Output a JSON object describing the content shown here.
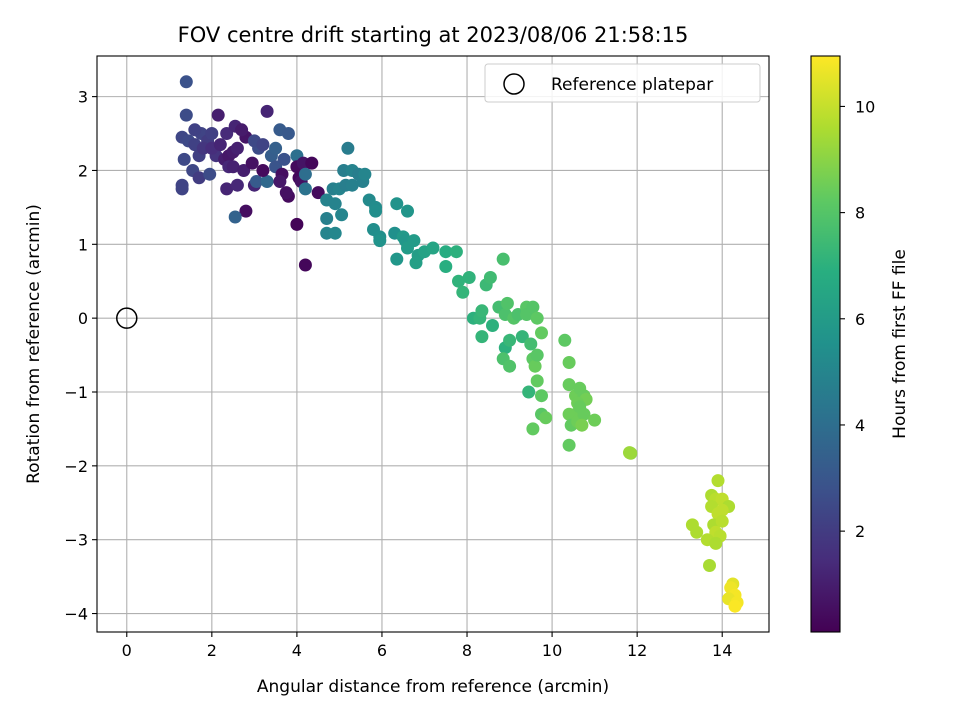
{
  "chart_data": {
    "type": "scatter",
    "title": "FOV centre drift starting at 2023/08/06 21:58:15",
    "xlabel": "Angular distance from reference (arcmin)",
    "ylabel": "Rotation from reference (arcmin)",
    "xlim": [
      -0.7,
      15.1
    ],
    "ylim": [
      -4.25,
      3.55
    ],
    "xticks": [
      0,
      2,
      4,
      6,
      8,
      10,
      12,
      14
    ],
    "yticks": [
      -4,
      -3,
      -2,
      -1,
      0,
      1,
      2,
      3
    ],
    "xtick_labels": [
      "0",
      "2",
      "4",
      "6",
      "8",
      "10",
      "12",
      "14"
    ],
    "ytick_labels": [
      "−4",
      "−3",
      "−2",
      "−1",
      "0",
      "1",
      "2",
      "3"
    ],
    "grid": true,
    "legend": {
      "location": "upper right",
      "entries": [
        "Reference platepar"
      ]
    },
    "reference_point": {
      "x": 0,
      "y": 0,
      "label": "Reference platepar"
    },
    "colorbar": {
      "label": "Hours from first FF file",
      "colormap": "viridis",
      "range": [
        0.1,
        10.95
      ],
      "ticks": [
        2,
        4,
        6,
        8,
        10
      ],
      "tick_labels": [
        "2",
        "4",
        "6",
        "8",
        "10"
      ]
    },
    "points": [
      [
        1.4,
        3.2,
        2.8
      ],
      [
        1.4,
        2.75,
        2.6
      ],
      [
        1.3,
        2.45,
        2.4
      ],
      [
        1.45,
        2.4,
        2.5
      ],
      [
        1.6,
        2.35,
        2.2
      ],
      [
        1.75,
        2.5,
        2.3
      ],
      [
        1.9,
        2.4,
        2.0
      ],
      [
        2.0,
        2.5,
        2.1
      ],
      [
        1.35,
        2.15,
        2.5
      ],
      [
        1.7,
        2.2,
        2.1
      ],
      [
        1.55,
        2.0,
        2.4
      ],
      [
        1.7,
        1.9,
        2.0
      ],
      [
        1.95,
        1.95,
        2.6
      ],
      [
        1.8,
        2.3,
        1.8
      ],
      [
        2.1,
        2.2,
        1.7
      ],
      [
        1.3,
        1.8,
        2.3
      ],
      [
        1.3,
        1.75,
        2.3
      ],
      [
        1.6,
        2.55,
        2.2
      ],
      [
        2.0,
        2.3,
        1.5
      ],
      [
        2.2,
        2.35,
        1.2
      ],
      [
        2.3,
        2.15,
        1.0
      ],
      [
        2.4,
        2.2,
        0.8
      ],
      [
        2.5,
        2.25,
        0.9
      ],
      [
        2.15,
        2.75,
        1.0
      ],
      [
        2.35,
        2.5,
        1.4
      ],
      [
        2.55,
        2.6,
        1.2
      ],
      [
        2.6,
        2.3,
        1.1
      ],
      [
        2.8,
        2.45,
        0.7
      ],
      [
        2.7,
        2.55,
        0.9
      ],
      [
        2.4,
        2.05,
        1.3
      ],
      [
        2.5,
        2.05,
        1.1
      ],
      [
        2.35,
        1.75,
        1.2
      ],
      [
        2.6,
        1.8,
        1.3
      ],
      [
        2.75,
        2.0,
        1.0
      ],
      [
        2.8,
        1.45,
        0.5
      ],
      [
        2.55,
        1.37,
        3.5
      ],
      [
        2.95,
        2.1,
        0.6
      ],
      [
        3.0,
        1.8,
        1.2
      ],
      [
        3.05,
        1.85,
        3.2
      ],
      [
        3.1,
        2.3,
        2.6
      ],
      [
        3.0,
        2.4,
        2.5
      ],
      [
        3.2,
        2.35,
        2.3
      ],
      [
        3.3,
        2.8,
        1.2
      ],
      [
        3.4,
        2.2,
        3.3
      ],
      [
        3.3,
        1.85,
        3.8
      ],
      [
        3.2,
        2.0,
        0.4
      ],
      [
        3.5,
        2.3,
        3.4
      ],
      [
        3.6,
        2.55,
        3.2
      ],
      [
        3.5,
        2.05,
        2.9
      ],
      [
        3.7,
        2.15,
        2.8
      ],
      [
        3.8,
        2.5,
        3.1
      ],
      [
        3.65,
        1.95,
        0.5
      ],
      [
        3.6,
        1.85,
        0.8
      ],
      [
        3.8,
        1.65,
        0.4
      ],
      [
        3.75,
        1.7,
        0.6
      ],
      [
        4.0,
        2.2,
        4.1
      ],
      [
        4.0,
        2.05,
        0.4
      ],
      [
        4.05,
        1.9,
        0.3
      ],
      [
        4.1,
        1.85,
        0.6
      ],
      [
        4.15,
        2.1,
        0.7
      ],
      [
        4.2,
        1.75,
        4.2
      ],
      [
        4.2,
        1.95,
        4.0
      ],
      [
        4.35,
        2.1,
        0.3
      ],
      [
        4.5,
        1.7,
        0.4
      ],
      [
        4.0,
        1.27,
        0.2
      ],
      [
        4.2,
        0.72,
        0.3
      ],
      [
        4.7,
        1.6,
        4.9
      ],
      [
        4.85,
        1.75,
        4.8
      ],
      [
        4.9,
        1.55,
        4.9
      ],
      [
        4.7,
        1.35,
        4.8
      ],
      [
        4.7,
        1.15,
        5.0
      ],
      [
        4.9,
        1.15,
        5.1
      ],
      [
        5.05,
        1.4,
        5.0
      ],
      [
        5.0,
        1.75,
        4.9
      ],
      [
        5.15,
        1.8,
        4.7
      ],
      [
        5.3,
        1.8,
        4.8
      ],
      [
        5.1,
        2.0,
        4.7
      ],
      [
        5.3,
        2.0,
        4.9
      ],
      [
        5.2,
        2.3,
        4.6
      ],
      [
        5.45,
        1.95,
        4.7
      ],
      [
        5.55,
        1.85,
        4.8
      ],
      [
        5.6,
        1.95,
        5.0
      ],
      [
        5.7,
        1.6,
        5.2
      ],
      [
        5.85,
        1.5,
        5.3
      ],
      [
        5.85,
        1.45,
        5.4
      ],
      [
        5.8,
        1.2,
        5.4
      ],
      [
        5.95,
        1.1,
        5.5
      ],
      [
        5.95,
        1.05,
        5.6
      ],
      [
        6.3,
        1.15,
        5.5
      ],
      [
        6.35,
        1.55,
        5.6
      ],
      [
        6.6,
        1.45,
        5.7
      ],
      [
        6.35,
        0.8,
        5.8
      ],
      [
        6.5,
        1.1,
        5.9
      ],
      [
        6.55,
        1.05,
        5.8
      ],
      [
        6.6,
        0.95,
        6.0
      ],
      [
        6.75,
        1.05,
        6.0
      ],
      [
        6.85,
        0.85,
        6.1
      ],
      [
        6.8,
        0.75,
        6.2
      ],
      [
        7.0,
        0.9,
        6.3
      ],
      [
        7.2,
        0.95,
        6.4
      ],
      [
        7.5,
        0.9,
        6.8
      ],
      [
        7.5,
        0.7,
        6.9
      ],
      [
        7.75,
        0.9,
        7.0
      ],
      [
        7.8,
        0.5,
        7.1
      ],
      [
        7.9,
        0.35,
        7.2
      ],
      [
        8.05,
        0.55,
        7.1
      ],
      [
        8.15,
        0.0,
        7.0
      ],
      [
        8.3,
        0.0,
        7.2
      ],
      [
        8.35,
        0.1,
        7.3
      ],
      [
        8.35,
        -0.25,
        7.2
      ],
      [
        8.45,
        0.45,
        7.4
      ],
      [
        8.55,
        0.55,
        7.5
      ],
      [
        8.6,
        -0.1,
        7.0
      ],
      [
        8.75,
        0.15,
        7.6
      ],
      [
        8.85,
        0.8,
        7.7
      ],
      [
        8.9,
        0.05,
        7.8
      ],
      [
        8.95,
        0.2,
        7.9
      ],
      [
        8.9,
        -0.4,
        7.0
      ],
      [
        8.85,
        -0.55,
        7.8
      ],
      [
        9.0,
        -0.65,
        7.9
      ],
      [
        9.1,
        0.0,
        8.0
      ],
      [
        9.2,
        0.05,
        7.8
      ],
      [
        9.0,
        -0.3,
        7.3
      ],
      [
        9.3,
        -0.25,
        7.2
      ],
      [
        9.4,
        0.15,
        8.1
      ],
      [
        9.4,
        0.05,
        8.0
      ],
      [
        9.55,
        0.15,
        8.0
      ],
      [
        9.65,
        0.0,
        8.2
      ],
      [
        9.5,
        -0.35,
        7.6
      ],
      [
        9.75,
        -0.2,
        8.3
      ],
      [
        9.55,
        -0.55,
        8.2
      ],
      [
        9.6,
        -0.65,
        8.4
      ],
      [
        9.65,
        -0.5,
        8.1
      ],
      [
        9.45,
        -1.0,
        7.2
      ],
      [
        9.65,
        -0.85,
        8.3
      ],
      [
        9.75,
        -1.05,
        8.2
      ],
      [
        9.75,
        -1.3,
        8.1
      ],
      [
        9.55,
        -1.5,
        8.3
      ],
      [
        9.85,
        -1.35,
        8.4
      ],
      [
        10.3,
        -0.3,
        8.2
      ],
      [
        10.4,
        -0.6,
        8.4
      ],
      [
        10.4,
        -0.9,
        8.4
      ],
      [
        10.55,
        -1.05,
        8.5
      ],
      [
        10.65,
        -0.95,
        8.4
      ],
      [
        10.75,
        -1.05,
        8.4
      ],
      [
        10.8,
        -1.1,
        8.6
      ],
      [
        10.6,
        -1.15,
        8.5
      ],
      [
        10.55,
        -1.3,
        8.5
      ],
      [
        10.4,
        -1.3,
        8.5
      ],
      [
        10.45,
        -1.45,
        8.3
      ],
      [
        10.6,
        -1.4,
        8.5
      ],
      [
        10.65,
        -1.2,
        8.4
      ],
      [
        10.75,
        -1.3,
        8.4
      ],
      [
        10.7,
        -1.45,
        8.7
      ],
      [
        10.4,
        -1.72,
        8.3
      ],
      [
        11.0,
        -1.38,
        8.5
      ],
      [
        11.85,
        -1.83,
        9.2
      ],
      [
        11.82,
        -1.82,
        9.3
      ],
      [
        13.9,
        -2.2,
        9.7
      ],
      [
        13.75,
        -2.4,
        9.6
      ],
      [
        13.85,
        -2.45,
        9.8
      ],
      [
        14.0,
        -2.45,
        9.9
      ],
      [
        14.15,
        -2.55,
        9.6
      ],
      [
        13.75,
        -2.55,
        9.7
      ],
      [
        13.9,
        -2.65,
        9.9
      ],
      [
        14.0,
        -2.6,
        9.9
      ],
      [
        13.8,
        -2.8,
        9.6
      ],
      [
        14.0,
        -2.75,
        9.8
      ],
      [
        13.85,
        -2.9,
        9.9
      ],
      [
        13.95,
        -2.95,
        9.8
      ],
      [
        13.3,
        -2.8,
        9.6
      ],
      [
        13.4,
        -2.9,
        9.6
      ],
      [
        13.65,
        -3.0,
        9.7
      ],
      [
        13.85,
        -3.05,
        9.6
      ],
      [
        13.7,
        -3.35,
        9.5
      ],
      [
        14.25,
        -3.6,
        10.5
      ],
      [
        14.2,
        -3.65,
        10.7
      ],
      [
        14.3,
        -3.75,
        10.8
      ],
      [
        14.15,
        -3.8,
        10.6
      ],
      [
        14.35,
        -3.85,
        10.8
      ],
      [
        14.3,
        -3.9,
        10.9
      ]
    ]
  }
}
